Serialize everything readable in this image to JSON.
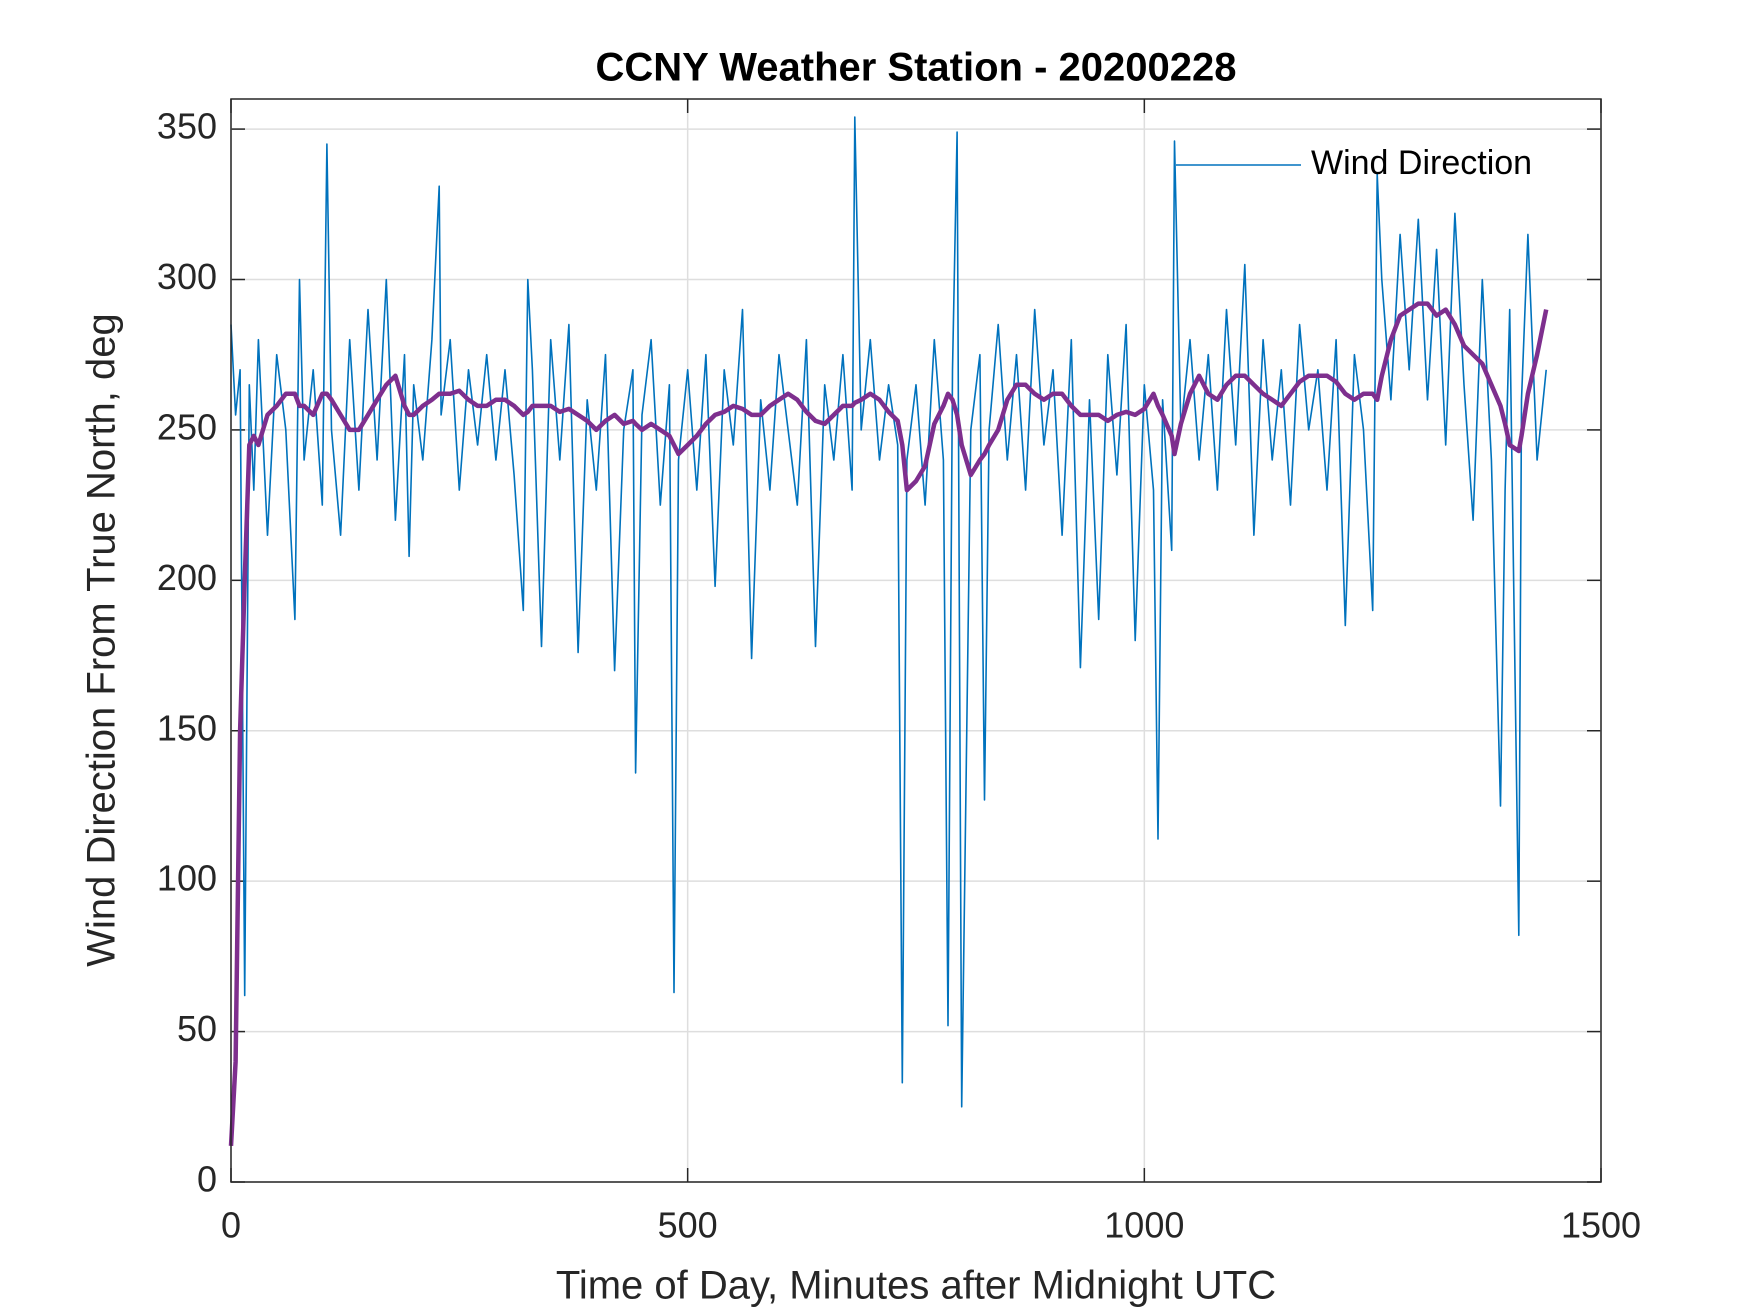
{
  "chart_data": {
    "type": "line",
    "title": "CCNY Weather Station - 20200228",
    "xlabel": "Time of Day, Minutes after Midnight UTC",
    "ylabel": "Wind Direction From True North, deg",
    "xlim": [
      0,
      1500
    ],
    "xticks": [
      0,
      500,
      1000,
      1500
    ],
    "ylim": [
      0,
      360
    ],
    "yticks": [
      0,
      50,
      100,
      150,
      200,
      250,
      300,
      350
    ],
    "grid": true,
    "legend": "northeast",
    "x": [
      0,
      5,
      10,
      15,
      20,
      25,
      30,
      40,
      50,
      60,
      70,
      75,
      80,
      90,
      100,
      105,
      110,
      120,
      130,
      140,
      150,
      160,
      170,
      180,
      190,
      195,
      200,
      210,
      220,
      228,
      230,
      240,
      250,
      260,
      270,
      280,
      290,
      300,
      310,
      320,
      325,
      330,
      340,
      350,
      360,
      370,
      380,
      390,
      400,
      410,
      420,
      430,
      440,
      443,
      450,
      460,
      470,
      480,
      485,
      490,
      500,
      510,
      520,
      530,
      540,
      550,
      560,
      570,
      580,
      590,
      600,
      610,
      620,
      630,
      640,
      650,
      660,
      670,
      680,
      683,
      690,
      700,
      710,
      720,
      730,
      735,
      740,
      750,
      760,
      770,
      780,
      785,
      790,
      795,
      800,
      810,
      820,
      825,
      830,
      840,
      850,
      860,
      870,
      880,
      890,
      900,
      910,
      920,
      930,
      940,
      950,
      960,
      970,
      980,
      990,
      1000,
      1010,
      1015,
      1020,
      1030,
      1033,
      1040,
      1050,
      1060,
      1070,
      1080,
      1090,
      1100,
      1110,
      1120,
      1130,
      1140,
      1150,
      1160,
      1170,
      1180,
      1190,
      1200,
      1210,
      1220,
      1230,
      1240,
      1250,
      1255,
      1260,
      1270,
      1280,
      1290,
      1300,
      1310,
      1320,
      1330,
      1340,
      1350,
      1360,
      1370,
      1380,
      1390,
      1395,
      1400,
      1410,
      1413,
      1420,
      1430,
      1440
    ],
    "series": [
      {
        "name": "Wind Direction",
        "color": "#0072bd",
        "values": [
          285,
          255,
          270,
          62,
          265,
          230,
          280,
          215,
          275,
          250,
          187,
          300,
          240,
          270,
          225,
          345,
          250,
          215,
          280,
          230,
          290,
          240,
          300,
          220,
          275,
          208,
          265,
          240,
          280,
          331,
          255,
          280,
          230,
          270,
          245,
          275,
          240,
          270,
          235,
          190,
          300,
          270,
          178,
          280,
          240,
          285,
          176,
          260,
          230,
          275,
          170,
          250,
          270,
          136,
          255,
          280,
          225,
          265,
          63,
          240,
          270,
          230,
          275,
          198,
          270,
          245,
          290,
          174,
          260,
          230,
          275,
          250,
          225,
          280,
          178,
          265,
          240,
          275,
          230,
          354,
          250,
          280,
          240,
          265,
          245,
          33,
          240,
          265,
          225,
          280,
          240,
          52,
          270,
          349,
          25,
          250,
          275,
          127,
          250,
          285,
          240,
          275,
          230,
          290,
          245,
          270,
          215,
          280,
          171,
          260,
          187,
          275,
          235,
          285,
          180,
          265,
          230,
          114,
          260,
          210,
          346,
          250,
          280,
          240,
          275,
          230,
          290,
          245,
          305,
          215,
          280,
          240,
          270,
          225,
          285,
          250,
          270,
          230,
          280,
          185,
          275,
          250,
          190,
          335,
          300,
          260,
          315,
          270,
          320,
          260,
          310,
          245,
          322,
          265,
          220,
          300,
          240,
          125,
          230,
          290,
          82,
          260,
          315,
          240,
          270
        ]
      },
      {
        "color": "#7e2f8e",
        "values": [
          12,
          40,
          150,
          200,
          245,
          248,
          245,
          255,
          258,
          262,
          262,
          258,
          258,
          255,
          262,
          262,
          260,
          255,
          250,
          250,
          255,
          260,
          265,
          268,
          258,
          255,
          255,
          258,
          260,
          262,
          262,
          262,
          263,
          260,
          258,
          258,
          260,
          260,
          258,
          255,
          256,
          258,
          258,
          258,
          256,
          257,
          255,
          253,
          250,
          253,
          255,
          252,
          253,
          252,
          250,
          252,
          250,
          248,
          245,
          242,
          245,
          248,
          252,
          255,
          256,
          258,
          257,
          255,
          255,
          258,
          260,
          262,
          260,
          256,
          253,
          252,
          255,
          258,
          258,
          259,
          260,
          262,
          260,
          256,
          253,
          245,
          230,
          233,
          238,
          252,
          258,
          262,
          260,
          255,
          245,
          235,
          240,
          242,
          245,
          250,
          260,
          265,
          265,
          262,
          260,
          262,
          262,
          258,
          255,
          255,
          255,
          253,
          255,
          256,
          255,
          257,
          262,
          258,
          255,
          248,
          242,
          252,
          262,
          268,
          262,
          260,
          265,
          268,
          268,
          265,
          262,
          260,
          258,
          262,
          266,
          268,
          268,
          268,
          266,
          262,
          260,
          262,
          262,
          260,
          268,
          280,
          288,
          290,
          292,
          292,
          288,
          290,
          285,
          278,
          275,
          272,
          265,
          258,
          252,
          245,
          243,
          248,
          262,
          275,
          290
        ]
      }
    ]
  }
}
